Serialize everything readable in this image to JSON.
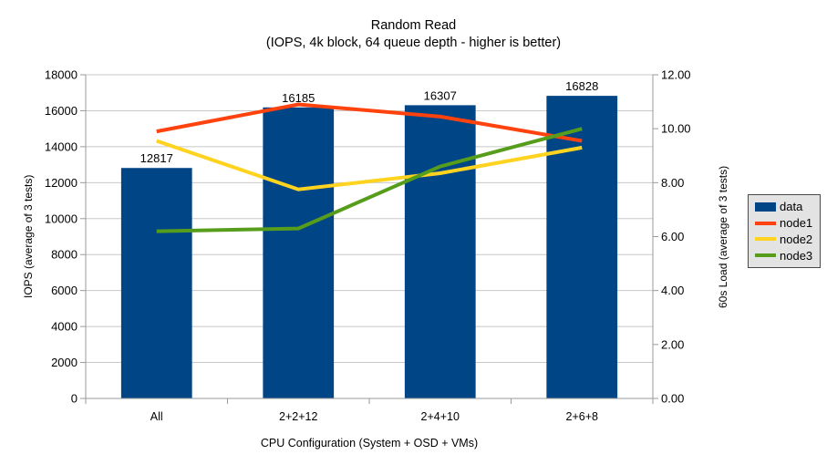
{
  "chart": {
    "title": "Random Read",
    "subtitle": "(IOPS, 4k block, 64 queue depth - higher is better)",
    "xlabel": "CPU Configuration (System + OSD + VMs)",
    "ylabel_left": "IOPS (average of 3 tests)",
    "ylabel_right": "60s Load (average of 3 tests)"
  },
  "chart_data": {
    "type": "bar+line combo",
    "title": "Random Read",
    "subtitle": "(IOPS, 4k block, 64 queue depth - higher is better)",
    "xlabel": "CPU Configuration (System + OSD + VMs)",
    "ylabel_left": "IOPS (average of 3 tests)",
    "ylabel_right": "60s Load (average of 3 tests)",
    "categories": [
      "All",
      "2+2+12",
      "2+4+10",
      "2+6+8"
    ],
    "series": [
      {
        "name": "data",
        "type": "bar",
        "axis": "left",
        "color": "#004586",
        "values": [
          12817,
          16185,
          16307,
          16828
        ]
      },
      {
        "name": "node1",
        "type": "line",
        "axis": "right",
        "color": "#FF420E",
        "values": [
          9.9,
          10.9,
          10.45,
          9.55
        ]
      },
      {
        "name": "node2",
        "type": "line",
        "axis": "right",
        "color": "#FFD320",
        "values": [
          9.55,
          7.75,
          8.35,
          9.3
        ]
      },
      {
        "name": "node3",
        "type": "line",
        "axis": "right",
        "color": "#579D1C",
        "values": [
          6.2,
          6.3,
          8.6,
          10.0
        ]
      }
    ],
    "axes": {
      "left": {
        "min": 0,
        "max": 18000,
        "step": 2000,
        "decimals": 0
      },
      "right": {
        "min": 0,
        "max": 12,
        "step": 2,
        "decimals": 2
      }
    },
    "left_tick_labels": [
      "0",
      "2000",
      "4000",
      "6000",
      "8000",
      "10000",
      "12000",
      "14000",
      "16000",
      "18000"
    ],
    "right_tick_labels": [
      "0.00",
      "2.00",
      "4.00",
      "6.00",
      "8.00",
      "10.00",
      "12.00"
    ],
    "bar_labels": [
      "12817",
      "16185",
      "16307",
      "16828"
    ],
    "grid": "horizontal",
    "legend_position": "right"
  },
  "colors": {
    "grid": "#c8c8c8",
    "axis": "#9a9a9a",
    "text": "#000000",
    "legend_bg": "#e3e3e3",
    "legend_border": "#4a4a4a",
    "background": "#ffffff"
  }
}
